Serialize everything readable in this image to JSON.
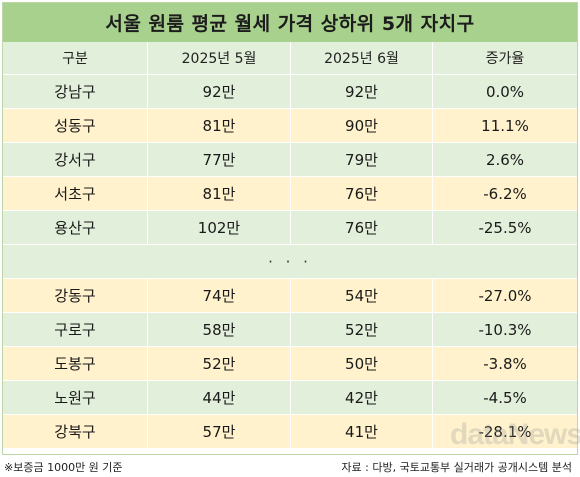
{
  "title": "서울 원룸 평균 월세 가격 상하위 5개 자치구",
  "columns": [
    "구분",
    "2025년 5월",
    "2025년 6월",
    "증가율"
  ],
  "top_rows": [
    {
      "district": "강남구",
      "may": "92만",
      "june": "92만",
      "rate": "0.0%"
    },
    {
      "district": "성동구",
      "may": "81만",
      "june": "90만",
      "rate": "11.1%"
    },
    {
      "district": "강서구",
      "may": "77만",
      "june": "79만",
      "rate": "2.6%"
    },
    {
      "district": "서초구",
      "may": "81만",
      "june": "76만",
      "rate": "-6.2%"
    },
    {
      "district": "용산구",
      "may": "102만",
      "june": "76만",
      "rate": "-25.5%"
    }
  ],
  "separator": "· · ·",
  "bottom_rows": [
    {
      "district": "강동구",
      "may": "74만",
      "june": "54만",
      "rate": "-27.0%"
    },
    {
      "district": "구로구",
      "may": "58만",
      "june": "52만",
      "rate": "-10.3%"
    },
    {
      "district": "도봉구",
      "may": "52만",
      "june": "50만",
      "rate": "-3.8%"
    },
    {
      "district": "노원구",
      "may": "44만",
      "june": "42만",
      "rate": "-4.5%"
    },
    {
      "district": "강북구",
      "may": "57만",
      "june": "41만",
      "rate": "-28.1%"
    }
  ],
  "footnote": "※보증금 1000만 원 기준",
  "source": "자료 : 다방, 국토교통부 실거래가 공개시스템 분석",
  "watermark": "dataNews",
  "colors": {
    "title_bg": "#a9d18e",
    "row_green": "#e2efda",
    "row_peach": "#fff2cc"
  }
}
